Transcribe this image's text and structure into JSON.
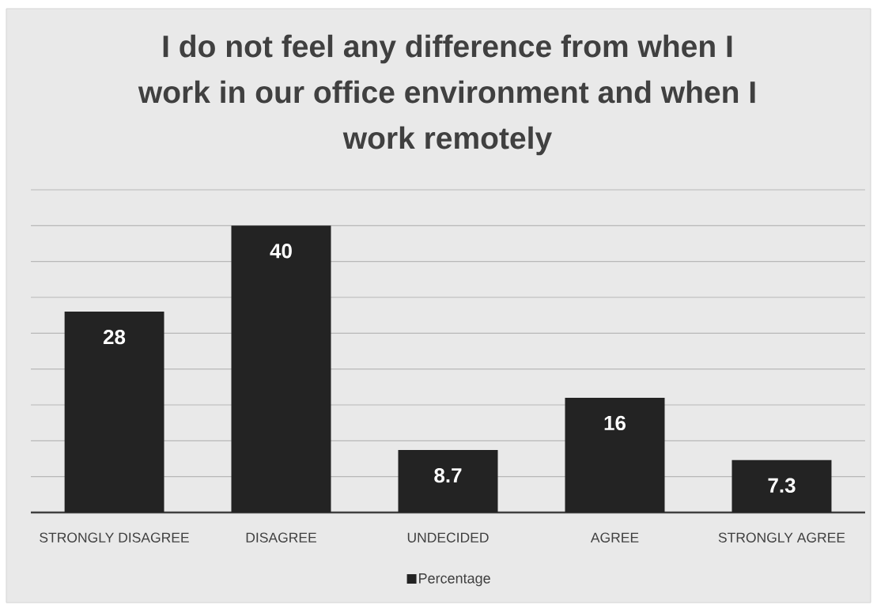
{
  "chart_data": {
    "type": "bar",
    "title": "I do not feel any difference from when I work in our office environment and when I work remotely",
    "categories": [
      "STRONGLY DISAGREE",
      "DISAGREE",
      "UNDECIDED",
      "AGREE",
      "STRONGLY AGREE"
    ],
    "series": [
      {
        "name": "Percentage",
        "color": "#232323",
        "values": [
          28,
          40,
          8.7,
          16,
          7.3
        ]
      }
    ],
    "ylim": [
      0,
      45
    ],
    "yticks": [
      {
        "value": 0,
        "label": null
      },
      {
        "value": 5,
        "label": null
      },
      {
        "value": 10,
        "label": null
      },
      {
        "value": 15,
        "label": null
      },
      {
        "value": 20,
        "label": null
      },
      {
        "value": 25,
        "label": null
      },
      {
        "value": 30,
        "label": null
      },
      {
        "value": 35,
        "label": null
      },
      {
        "value": 40,
        "label": null
      },
      {
        "value": 45,
        "label": null
      }
    ],
    "tick_labels": "x",
    "grid": "y",
    "data_labels": true,
    "legend": "bottom"
  }
}
